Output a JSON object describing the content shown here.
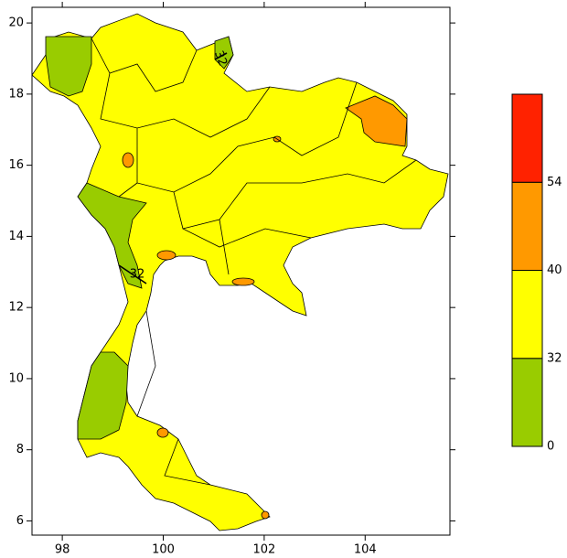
{
  "map": {
    "xlim": [
      97.4,
      105.68
    ],
    "ylim": [
      5.6,
      20.44
    ],
    "xticks": [
      98,
      100,
      102,
      104
    ],
    "yticks": [
      6,
      8,
      10,
      12,
      14,
      16,
      18,
      20
    ],
    "contour_labels": [
      "32",
      "32"
    ],
    "legend": {
      "levels": [
        0,
        32,
        40,
        54
      ],
      "colors": [
        "#99cc00",
        "#ffff00",
        "#ff9900",
        "#ff2200"
      ]
    }
  }
}
